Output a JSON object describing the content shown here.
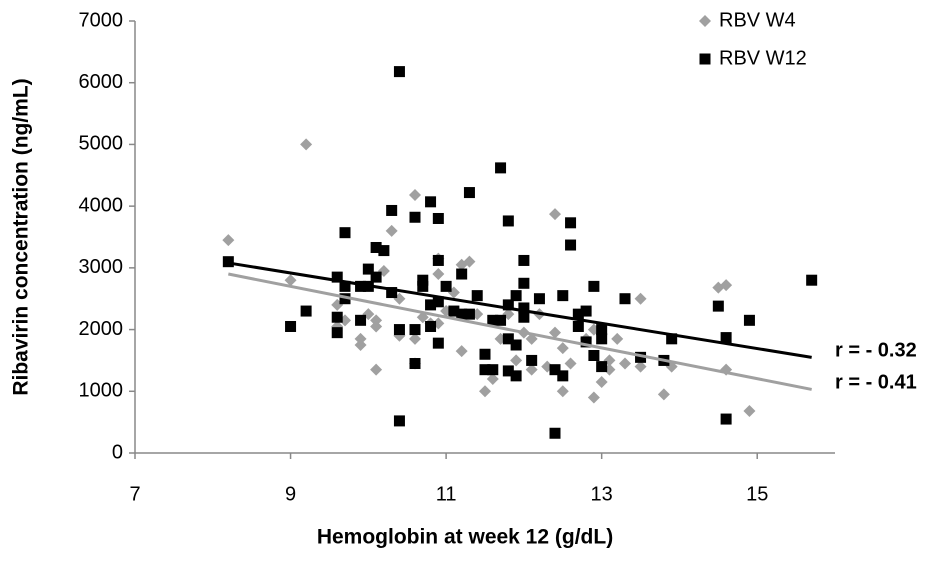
{
  "chart_data": {
    "type": "scatter",
    "xlabel": "Hemoglobin at week 12 (g/dL)",
    "ylabel": "Ribavirin concentration (ng/mL)",
    "xlim": [
      7,
      16
    ],
    "xticks": [
      7,
      9,
      11,
      13,
      15
    ],
    "ylim": [
      0,
      7000
    ],
    "yticks": [
      0,
      1000,
      2000,
      3000,
      4000,
      5000,
      6000,
      7000
    ],
    "legend": "top-right",
    "series": [
      {
        "name": "RBV W4",
        "color": "#a0a0a0",
        "marker": "diamond",
        "x": [
          8.2,
          9.0,
          9.2,
          9.6,
          9.6,
          9.7,
          9.9,
          9.9,
          10.0,
          10.1,
          10.1,
          10.1,
          10.2,
          10.3,
          10.4,
          10.4,
          10.6,
          10.6,
          10.6,
          10.7,
          10.8,
          10.9,
          10.9,
          10.9,
          11.0,
          11.1,
          11.2,
          11.2,
          11.3,
          11.4,
          11.5,
          11.6,
          11.7,
          11.8,
          11.9,
          12.0,
          12.1,
          12.1,
          12.2,
          12.3,
          12.4,
          12.4,
          12.5,
          12.5,
          12.6,
          12.8,
          12.9,
          12.9,
          13.0,
          13.1,
          13.1,
          13.2,
          13.3,
          13.5,
          13.5,
          13.8,
          13.9,
          14.5,
          14.6,
          14.6,
          14.9
        ],
        "values": [
          3450,
          2800,
          5000,
          2400,
          2050,
          2150,
          1850,
          1750,
          2250,
          2150,
          2050,
          1350,
          2950,
          3600,
          2500,
          1900,
          4180,
          1850,
          1450,
          2200,
          2100,
          3150,
          2900,
          2100,
          2300,
          2600,
          3050,
          1650,
          3100,
          2250,
          1000,
          1200,
          1850,
          2250,
          1500,
          1950,
          1850,
          1350,
          2250,
          1400,
          3870,
          1950,
          1000,
          1700,
          1450,
          1850,
          2000,
          900,
          1150,
          1500,
          1350,
          1850,
          1450,
          1400,
          2500,
          950,
          1400,
          2680,
          2720,
          1350,
          680
        ]
      },
      {
        "name": "RBV W12",
        "color": "#000000",
        "marker": "square",
        "x": [
          8.2,
          9.0,
          9.2,
          9.6,
          9.6,
          9.6,
          9.7,
          9.7,
          9.7,
          9.9,
          9.9,
          10.0,
          10.0,
          10.1,
          10.1,
          10.2,
          10.3,
          10.3,
          10.4,
          10.4,
          10.4,
          10.6,
          10.6,
          10.6,
          10.7,
          10.7,
          10.8,
          10.8,
          10.8,
          10.9,
          10.9,
          10.9,
          10.9,
          11.0,
          11.1,
          11.2,
          11.2,
          11.3,
          11.3,
          11.4,
          11.5,
          11.5,
          11.6,
          11.6,
          11.7,
          11.7,
          11.8,
          11.8,
          11.8,
          11.8,
          11.9,
          11.9,
          11.9,
          12.0,
          12.0,
          12.0,
          12.0,
          12.1,
          12.2,
          12.4,
          12.4,
          12.5,
          12.5,
          12.6,
          12.6,
          12.7,
          12.7,
          12.8,
          12.8,
          12.9,
          12.9,
          13.0,
          13.0,
          13.0,
          13.3,
          13.5,
          13.8,
          13.9,
          14.5,
          14.6,
          14.6,
          14.9,
          15.7
        ],
        "values": [
          3100,
          2050,
          2300,
          2850,
          2200,
          1950,
          3570,
          2500,
          2700,
          2150,
          2700,
          2980,
          2700,
          3330,
          2850,
          3280,
          3930,
          2600,
          6180,
          2000,
          520,
          3820,
          2000,
          1450,
          2800,
          2700,
          4070,
          2400,
          2050,
          3800,
          3120,
          2450,
          1780,
          2700,
          2300,
          2900,
          2250,
          4220,
          2250,
          2550,
          1600,
          1350,
          2150,
          1350,
          4620,
          2150,
          3760,
          2400,
          1850,
          1330,
          2550,
          1750,
          1250,
          3120,
          2750,
          2350,
          2200,
          1500,
          2500,
          320,
          1350,
          2550,
          1250,
          3730,
          3370,
          2250,
          2050,
          2300,
          1800,
          2700,
          1580,
          1400,
          2000,
          1850,
          2500,
          1550,
          1500,
          1850,
          2380,
          1870,
          550,
          2150,
          2800
        ]
      }
    ],
    "trendlines": [
      {
        "color": "#000000",
        "x": [
          8.2,
          15.7
        ],
        "values": [
          3080,
          1550
        ]
      },
      {
        "color": "#a0a0a0",
        "x": [
          8.2,
          15.7
        ],
        "values": [
          2900,
          1030
        ]
      }
    ],
    "annotations": [
      {
        "text": "r = - 0.32",
        "color": "#000000"
      },
      {
        "text": "r = - 0.41",
        "color": "#a0a0a0"
      }
    ]
  }
}
